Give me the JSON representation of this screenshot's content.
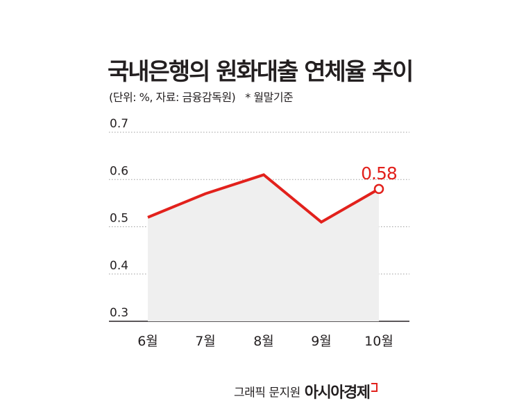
{
  "title": "국내은행의 원화대출 연체율 추이",
  "subtitle": "(단위: %, 자료: 금융감독원)",
  "note": "* 월말기준",
  "credit": {
    "maker": "그래픽 문지원",
    "brand": "아시아경제"
  },
  "colors": {
    "line": "#e2211c",
    "area": "#efefef",
    "grid": "#9d9d9d",
    "text": "#231f20"
  },
  "chart_data": {
    "type": "area",
    "categories": [
      "6월",
      "7월",
      "8월",
      "9월",
      "10월"
    ],
    "values": [
      0.52,
      0.57,
      0.61,
      0.51,
      0.58
    ],
    "ylim": [
      0.3,
      0.7
    ],
    "yticks": [
      "0.3",
      "0.4",
      "0.5",
      "0.6",
      "0.7"
    ],
    "grid": true,
    "annotation": {
      "index": 4,
      "label": "0.58"
    }
  }
}
